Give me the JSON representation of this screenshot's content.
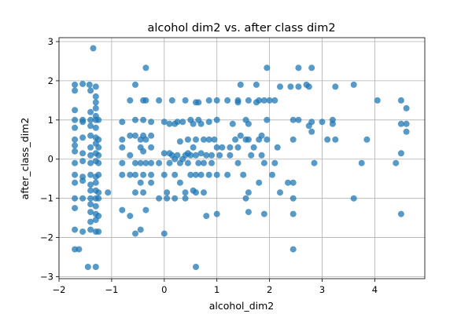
{
  "chart_data": {
    "type": "scatter",
    "title": "alcohol dim2 vs. after class dim2",
    "xlabel": "alcohol_dim2",
    "ylabel": "after_class_dim2",
    "xlim": [
      -2.0,
      4.95
    ],
    "ylim": [
      -3.05,
      3.1
    ],
    "xticks": [
      -2,
      -1,
      0,
      1,
      2,
      3,
      4
    ],
    "yticks": [
      -3,
      -2,
      -1,
      0,
      1,
      2,
      3
    ],
    "grid": true,
    "point_color": "#1f77b4",
    "series": [
      {
        "points": [
          [
            -1.7,
            1.9
          ],
          [
            -1.55,
            1.92
          ],
          [
            -1.42,
            1.9
          ],
          [
            -1.3,
            1.85
          ],
          [
            -1.7,
            1.75
          ],
          [
            -1.4,
            1.75
          ],
          [
            -1.3,
            1.6
          ],
          [
            -1.3,
            1.45
          ],
          [
            -1.3,
            1.3
          ],
          [
            -1.7,
            1.25
          ],
          [
            -1.4,
            1.2
          ],
          [
            -1.3,
            1.1
          ],
          [
            -1.7,
            1.0
          ],
          [
            -1.55,
            1.0
          ],
          [
            -1.4,
            1.0
          ],
          [
            -1.3,
            1.0
          ],
          [
            -1.25,
            1.0
          ],
          [
            -1.55,
            0.95
          ],
          [
            -1.7,
            0.8
          ],
          [
            -1.4,
            0.85
          ],
          [
            -1.3,
            0.8
          ],
          [
            -1.7,
            0.5
          ],
          [
            -1.55,
            0.55
          ],
          [
            -1.4,
            0.6
          ],
          [
            -1.3,
            0.55
          ],
          [
            -1.25,
            0.5
          ],
          [
            -1.7,
            0.35
          ],
          [
            -1.4,
            0.3
          ],
          [
            -1.3,
            0.4
          ],
          [
            -1.25,
            0.3
          ],
          [
            -1.7,
            0.2
          ],
          [
            -1.55,
            0.15
          ],
          [
            -1.4,
            0.1
          ],
          [
            -1.3,
            0.15
          ],
          [
            -1.25,
            0.1
          ],
          [
            -1.7,
            -0.1
          ],
          [
            -1.55,
            -0.05
          ],
          [
            -1.4,
            -0.1
          ],
          [
            -1.3,
            -0.05
          ],
          [
            -1.25,
            -0.1
          ],
          [
            -1.7,
            -0.4
          ],
          [
            -1.55,
            -0.45
          ],
          [
            -1.4,
            -0.4
          ],
          [
            -1.3,
            -0.45
          ],
          [
            -1.25,
            -0.4
          ],
          [
            -1.7,
            -0.6
          ],
          [
            -1.55,
            -0.55
          ],
          [
            -1.4,
            -0.65
          ],
          [
            -1.3,
            -0.6
          ],
          [
            -1.4,
            -0.8
          ],
          [
            -1.3,
            -0.8
          ],
          [
            -1.25,
            -0.85
          ],
          [
            -1.7,
            -1.0
          ],
          [
            -1.55,
            -1.0
          ],
          [
            -1.4,
            -1.0
          ],
          [
            -1.3,
            -1.0
          ],
          [
            -1.25,
            -1.0
          ],
          [
            -1.4,
            -1.15
          ],
          [
            -1.3,
            -1.2
          ],
          [
            -1.7,
            -1.25
          ],
          [
            -1.4,
            -1.35
          ],
          [
            -1.3,
            -1.4
          ],
          [
            -1.25,
            -1.45
          ],
          [
            -1.4,
            -1.6
          ],
          [
            -1.3,
            -1.55
          ],
          [
            -1.7,
            -1.8
          ],
          [
            -1.55,
            -1.85
          ],
          [
            -1.4,
            -1.8
          ],
          [
            -1.3,
            -1.85
          ],
          [
            -1.25,
            -1.85
          ],
          [
            -1.7,
            -2.3
          ],
          [
            -1.62,
            -2.3
          ],
          [
            -1.45,
            -2.75
          ],
          [
            -1.3,
            -2.75
          ],
          [
            -1.35,
            2.83
          ],
          [
            -1.07,
            -0.85
          ],
          [
            -0.8,
            0.95
          ],
          [
            -0.8,
            0.5
          ],
          [
            -0.8,
            0.3
          ],
          [
            -0.8,
            -0.1
          ],
          [
            -0.8,
            -0.4
          ],
          [
            -0.8,
            -1.3
          ],
          [
            -0.65,
            1.5
          ],
          [
            -0.65,
            0.6
          ],
          [
            -0.65,
            0.1
          ],
          [
            -0.65,
            -0.4
          ],
          [
            -0.65,
            -1.45
          ],
          [
            -0.55,
            1.9
          ],
          [
            -0.55,
            1.0
          ],
          [
            -0.55,
            0.6
          ],
          [
            -0.55,
            -0.1
          ],
          [
            -0.55,
            -0.4
          ],
          [
            -0.55,
            -0.85
          ],
          [
            -0.55,
            -1.9
          ],
          [
            -0.45,
            0.5
          ],
          [
            -0.45,
            0.3
          ],
          [
            -0.45,
            -0.1
          ],
          [
            -0.45,
            -0.6
          ],
          [
            -0.45,
            -1.8
          ],
          [
            -0.4,
            1.5
          ],
          [
            -0.4,
            1.0
          ],
          [
            -0.4,
            0.6
          ],
          [
            -0.4,
            0.2
          ],
          [
            -0.4,
            -0.4
          ],
          [
            -0.4,
            -0.85
          ],
          [
            -0.35,
            2.33
          ],
          [
            -0.35,
            1.5
          ],
          [
            -0.35,
            0.5
          ],
          [
            -0.35,
            -0.1
          ],
          [
            -0.35,
            -1.3
          ],
          [
            -0.25,
            0.95
          ],
          [
            -0.25,
            0.6
          ],
          [
            -0.25,
            0.3
          ],
          [
            -0.25,
            -0.1
          ],
          [
            -0.25,
            -0.4
          ],
          [
            -0.25,
            -0.6
          ],
          [
            -0.1,
            1.5
          ],
          [
            -0.1,
            -0.1
          ],
          [
            -0.1,
            -1.0
          ],
          [
            0.0,
            0.95
          ],
          [
            0.0,
            0.15
          ],
          [
            0.0,
            -0.4
          ],
          [
            0.0,
            -1.9
          ],
          [
            0.05,
            -0.85
          ],
          [
            0.05,
            -1.0
          ],
          [
            0.1,
            0.9
          ],
          [
            0.1,
            -0.1
          ],
          [
            0.1,
            0.15
          ],
          [
            0.15,
            1.5
          ],
          [
            0.15,
            0.1
          ],
          [
            0.2,
            0.9
          ],
          [
            0.2,
            0.0
          ],
          [
            0.2,
            -0.4
          ],
          [
            0.2,
            -1.0
          ],
          [
            0.25,
            0.95
          ],
          [
            0.25,
            0.1
          ],
          [
            0.3,
            0.45
          ],
          [
            0.3,
            -0.1
          ],
          [
            0.3,
            -0.6
          ],
          [
            0.35,
            0.95
          ],
          [
            0.35,
            0.0
          ],
          [
            0.4,
            1.5
          ],
          [
            0.4,
            0.1
          ],
          [
            0.4,
            -0.85
          ],
          [
            0.4,
            -1.0
          ],
          [
            0.45,
            0.5
          ],
          [
            0.45,
            0.15
          ],
          [
            0.45,
            -0.1
          ],
          [
            0.5,
            1.0
          ],
          [
            0.5,
            0.1
          ],
          [
            0.5,
            -0.4
          ],
          [
            0.55,
            0.9
          ],
          [
            0.55,
            0.3
          ],
          [
            0.55,
            -0.8
          ],
          [
            0.6,
            1.45
          ],
          [
            0.6,
            0.5
          ],
          [
            0.6,
            0.1
          ],
          [
            0.6,
            -0.4
          ],
          [
            0.6,
            -0.85
          ],
          [
            0.6,
            -2.75
          ],
          [
            0.65,
            1.0
          ],
          [
            0.65,
            -0.1
          ],
          [
            0.65,
            1.45
          ],
          [
            0.7,
            0.9
          ],
          [
            0.7,
            0.15
          ],
          [
            0.7,
            -0.4
          ],
          [
            0.75,
            0.5
          ],
          [
            0.75,
            -0.1
          ],
          [
            0.75,
            -0.85
          ],
          [
            0.8,
            -1.45
          ],
          [
            0.8,
            0.1
          ],
          [
            0.85,
            1.5
          ],
          [
            0.85,
            0.95
          ],
          [
            0.85,
            0.5
          ],
          [
            0.85,
            -0.4
          ],
          [
            0.9,
            0.1
          ],
          [
            0.9,
            -0.1
          ],
          [
            0.95,
            0.5
          ],
          [
            1.0,
            1.5
          ],
          [
            1.0,
            1.0
          ],
          [
            1.0,
            0.3
          ],
          [
            1.0,
            -0.4
          ],
          [
            1.0,
            -1.4
          ],
          [
            1.05,
            0.1
          ],
          [
            1.1,
            0.3
          ],
          [
            1.2,
            1.5
          ],
          [
            1.2,
            -0.4
          ],
          [
            1.25,
            0.3
          ],
          [
            1.25,
            0.1
          ],
          [
            1.3,
            0.9
          ],
          [
            1.35,
            0.5
          ],
          [
            1.4,
            1.5
          ],
          [
            1.4,
            1.45
          ],
          [
            1.4,
            0.3
          ],
          [
            1.4,
            -0.1
          ],
          [
            1.45,
            1.9
          ],
          [
            1.45,
            0.6
          ],
          [
            1.5,
            -0.4
          ],
          [
            1.55,
            1.0
          ],
          [
            1.55,
            0.5
          ],
          [
            1.55,
            -1.0
          ],
          [
            1.6,
            1.5
          ],
          [
            1.6,
            0.9
          ],
          [
            1.6,
            0.5
          ],
          [
            1.6,
            -0.85
          ],
          [
            1.6,
            -1.35
          ],
          [
            1.65,
            0.1
          ],
          [
            1.7,
            0.3
          ],
          [
            1.75,
            1.45
          ],
          [
            1.75,
            1.9
          ],
          [
            1.8,
            1.5
          ],
          [
            1.8,
            0.5
          ],
          [
            1.8,
            -0.6
          ],
          [
            1.85,
            0.6
          ],
          [
            1.85,
            0.1
          ],
          [
            1.9,
            1.5
          ],
          [
            1.9,
            -0.1
          ],
          [
            1.9,
            -1.4
          ],
          [
            1.95,
            2.33
          ],
          [
            1.95,
            1.0
          ],
          [
            1.95,
            0.5
          ],
          [
            2.0,
            1.5
          ],
          [
            2.05,
            -0.4
          ],
          [
            2.1,
            1.5
          ],
          [
            2.1,
            -0.1
          ],
          [
            2.15,
            0.3
          ],
          [
            2.2,
            1.85
          ],
          [
            2.2,
            -0.85
          ],
          [
            2.35,
            -0.6
          ],
          [
            2.4,
            1.85
          ],
          [
            2.45,
            1.0
          ],
          [
            2.45,
            0.5
          ],
          [
            2.45,
            -0.6
          ],
          [
            2.45,
            -1.0
          ],
          [
            2.45,
            -1.4
          ],
          [
            2.45,
            -2.3
          ],
          [
            2.55,
            1.85
          ],
          [
            2.55,
            1.0
          ],
          [
            2.55,
            2.33
          ],
          [
            2.7,
            1.9
          ],
          [
            2.75,
            1.85
          ],
          [
            2.75,
            0.85
          ],
          [
            2.8,
            0.95
          ],
          [
            2.8,
            0.7
          ],
          [
            2.8,
            2.33
          ],
          [
            2.85,
            -0.1
          ],
          [
            3.0,
            0.95
          ],
          [
            3.1,
            0.5
          ],
          [
            3.2,
            1.0
          ],
          [
            3.2,
            0.9
          ],
          [
            3.25,
            1.85
          ],
          [
            3.25,
            0.5
          ],
          [
            3.6,
            1.9
          ],
          [
            3.6,
            -1.0
          ],
          [
            3.75,
            -0.1
          ],
          [
            3.85,
            0.5
          ],
          [
            4.05,
            1.5
          ],
          [
            4.4,
            -0.1
          ],
          [
            4.5,
            1.5
          ],
          [
            4.5,
            0.9
          ],
          [
            4.5,
            0.15
          ],
          [
            4.5,
            -1.4
          ],
          [
            4.6,
            0.9
          ],
          [
            4.6,
            0.7
          ],
          [
            4.6,
            1.3
          ]
        ]
      }
    ]
  }
}
